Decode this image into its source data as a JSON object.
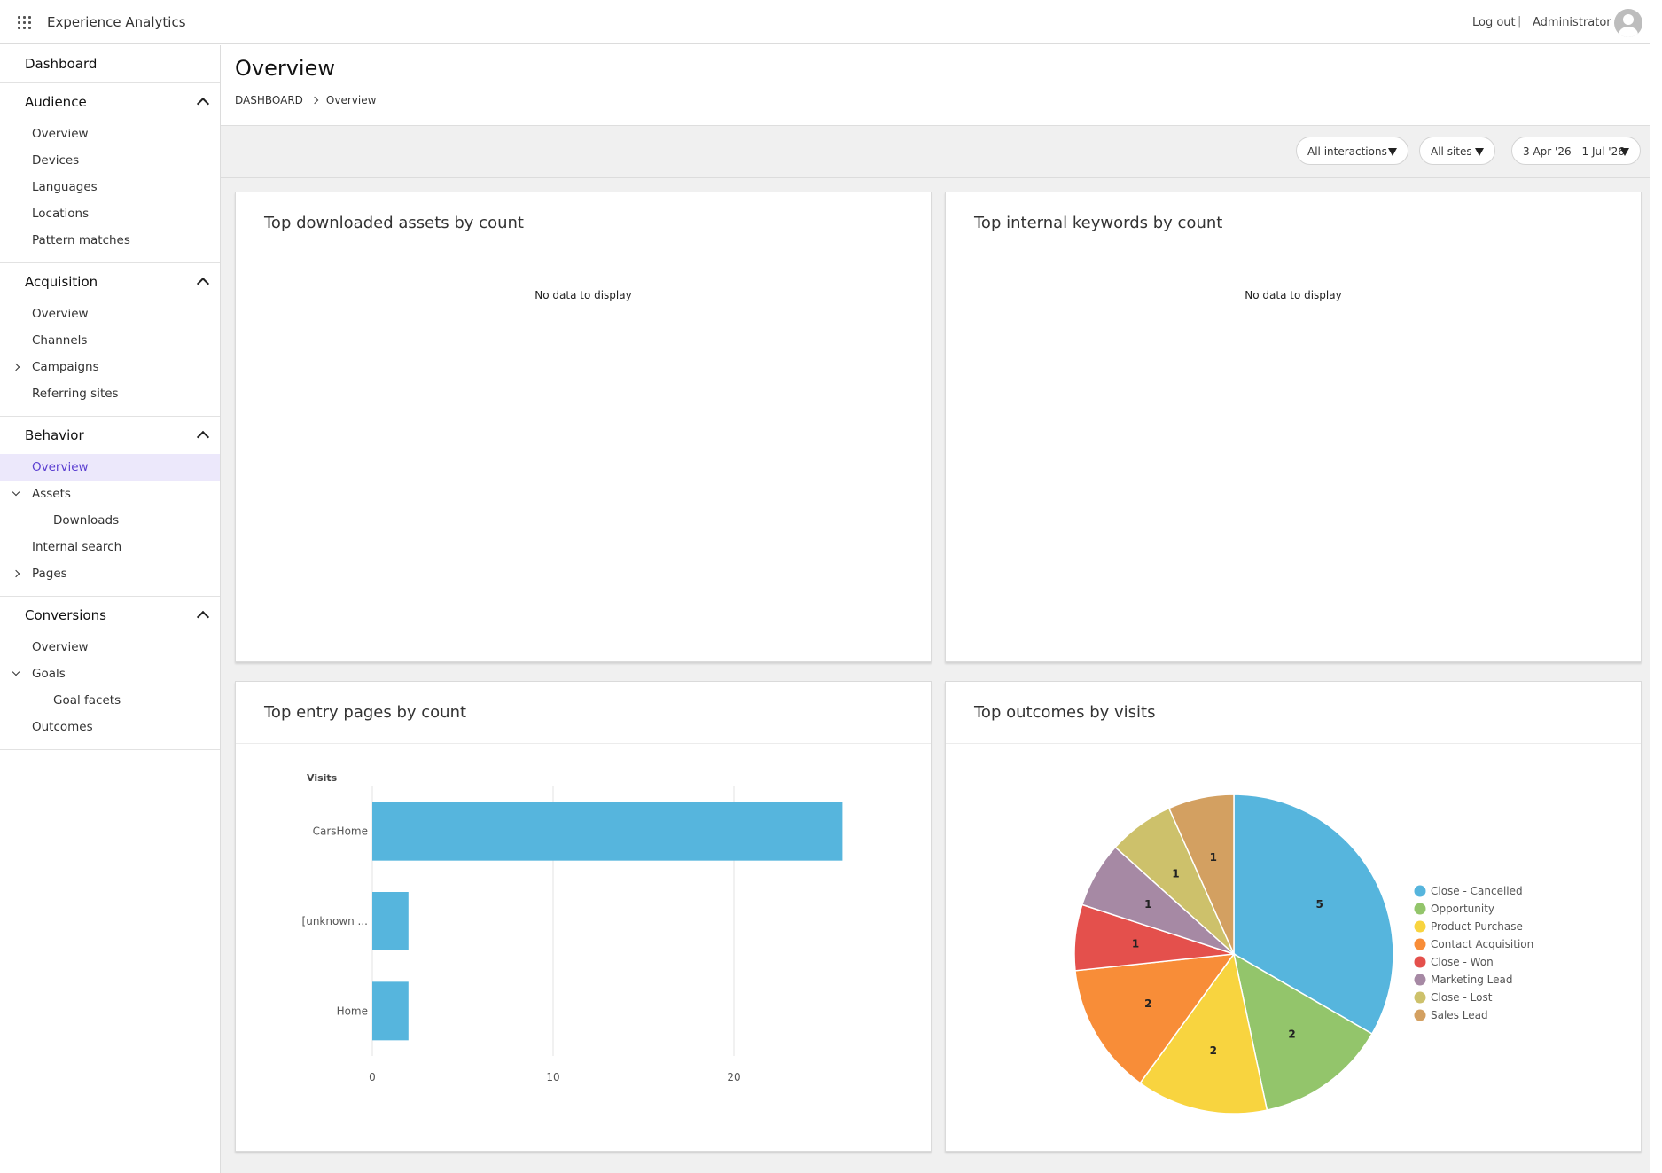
{
  "app": {
    "title": "Experience Analytics",
    "logout": "Log out",
    "separator": "|",
    "user": "Administrator",
    "icons": {
      "grid": "app-grid-icon",
      "avatar": "user-avatar-icon"
    }
  },
  "sidebar": {
    "dashboard": "Dashboard",
    "audience": {
      "label": "Audience",
      "items": [
        "Overview",
        "Devices",
        "Languages",
        "Locations",
        "Pattern matches"
      ]
    },
    "acquisition": {
      "label": "Acquisition",
      "items": [
        "Overview",
        "Channels",
        "Campaigns",
        "Referring sites"
      ]
    },
    "behavior": {
      "label": "Behavior",
      "items": [
        "Overview",
        "Assets",
        "Downloads",
        "Internal search",
        "Pages"
      ]
    },
    "conversions": {
      "label": "Conversions",
      "items": [
        "Overview",
        "Goals",
        "Goal facets",
        "Outcomes"
      ]
    },
    "active_item": "Behavior / Overview"
  },
  "page": {
    "title": "Overview",
    "breadcrumb": [
      "DASHBOARD",
      "Overview"
    ]
  },
  "filters": {
    "interactions": "All interactions",
    "sites": "All sites",
    "date_range": "3 Apr '26 - 1 Jul '26"
  },
  "cards": {
    "downloads": {
      "title": "Top downloaded assets by count",
      "empty": "No data to display"
    },
    "keywords": {
      "title": "Top internal keywords by count",
      "empty": "No data to display"
    },
    "entry_pages": {
      "title": "Top entry pages by count"
    },
    "outcomes": {
      "title": "Top outcomes by visits"
    }
  },
  "colors": {
    "accent": "#5b3fd1",
    "active_bg": "#ece8fb",
    "bar": "#56b5dd"
  },
  "chart_data": [
    {
      "type": "bar",
      "orientation": "horizontal",
      "categories": [
        "CarsHome",
        "[unknown ...",
        "Home"
      ],
      "values": [
        26,
        2,
        2
      ],
      "xlim": [
        0,
        30
      ],
      "xticks": [
        0,
        10,
        20
      ],
      "series_label": "Visits",
      "grid": true
    },
    {
      "type": "pie",
      "labels": [
        "Close - Cancelled",
        "Opportunity",
        "Product Purchase",
        "Contact Acquisition",
        "Close - Won",
        "Marketing Lead",
        "Close - Lost",
        "Sales Lead"
      ],
      "values": [
        5,
        2,
        2,
        2,
        1,
        1,
        1,
        1
      ],
      "colors": [
        "#56b5dd",
        "#93c56b",
        "#f8d43f",
        "#f88d38",
        "#e4504c",
        "#a689a4",
        "#cdc16b",
        "#d3a061"
      ],
      "legend": "right"
    }
  ]
}
